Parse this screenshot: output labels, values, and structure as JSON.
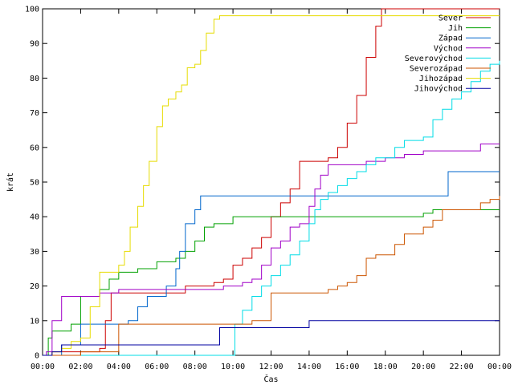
{
  "chart_data": {
    "type": "line",
    "xlabel": "Čas",
    "ylabel": "krát",
    "xlim": [
      0,
      24
    ],
    "ylim": [
      0,
      100
    ],
    "x_tick_labels": [
      "00:00",
      "02:00",
      "04:00",
      "06:00",
      "08:00",
      "10:00",
      "12:00",
      "14:00",
      "16:00",
      "18:00",
      "20:00",
      "22:00",
      "00:00"
    ],
    "y_ticks": [
      0,
      10,
      20,
      30,
      40,
      50,
      60,
      70,
      80,
      90,
      100
    ],
    "grid": false,
    "legend_position": "top-right",
    "series": [
      {
        "name": "Sever",
        "color": "#cc0000",
        "x": [
          0,
          0.5,
          1,
          2,
          3,
          3.3,
          3.6,
          4,
          5,
          6,
          7.5,
          8,
          9,
          9.5,
          10,
          10.5,
          11,
          11.5,
          12,
          12.5,
          13,
          13.5,
          14,
          14.5,
          15,
          15.5,
          16,
          16.5,
          17,
          17.5,
          17.8,
          18,
          24
        ],
        "y": [
          0,
          1,
          1,
          1,
          2,
          10,
          18,
          18,
          18,
          18,
          20,
          20,
          21,
          22,
          26,
          28,
          31,
          34,
          40,
          44,
          48,
          56,
          56,
          56,
          57,
          60,
          67,
          75,
          86,
          95,
          100,
          100,
          100
        ]
      },
      {
        "name": "Jih",
        "color": "#00a000",
        "x": [
          0,
          0.3,
          0.5,
          1,
          1.5,
          2,
          3,
          3.5,
          4,
          5,
          6,
          7,
          7.5,
          8,
          8.5,
          9,
          10,
          11,
          12,
          14,
          16,
          18,
          20,
          20.5,
          21,
          22,
          24
        ],
        "y": [
          0,
          5,
          7,
          7,
          9,
          17,
          19,
          22,
          24,
          25,
          27,
          28,
          30,
          33,
          37,
          38,
          40,
          40,
          40,
          40,
          40,
          40,
          41,
          42,
          42,
          42,
          42
        ]
      },
      {
        "name": "Západ",
        "color": "#0066cc",
        "x": [
          0,
          1,
          2,
          3,
          4,
          4.5,
          5,
          5.5,
          6,
          6.5,
          7,
          7.2,
          7.5,
          8,
          8.3,
          8.5,
          10,
          12,
          14,
          16,
          18,
          20,
          21,
          21.3,
          22,
          23,
          24
        ],
        "y": [
          0,
          3,
          9,
          9,
          9,
          10,
          14,
          17,
          17,
          20,
          25,
          30,
          38,
          42,
          46,
          46,
          46,
          46,
          46,
          46,
          46,
          46,
          46,
          53,
          53,
          53,
          53
        ]
      },
      {
        "name": "Východ",
        "color": "#a000c8",
        "x": [
          0,
          0.2,
          0.5,
          1,
          1.5,
          2,
          3,
          4,
          5,
          6,
          7,
          8,
          9,
          9.5,
          10,
          10.5,
          11,
          11.5,
          12,
          12.5,
          13,
          13.5,
          14,
          14.3,
          14.6,
          15,
          16,
          17,
          18,
          19,
          20,
          21,
          22,
          23,
          24
        ],
        "y": [
          0,
          1,
          10,
          17,
          17,
          17,
          18,
          19,
          19,
          19,
          19,
          19,
          19,
          20,
          20,
          21,
          22,
          26,
          31,
          33,
          37,
          38,
          43,
          48,
          52,
          55,
          55,
          56,
          57,
          58,
          59,
          59,
          59,
          61,
          61
        ]
      },
      {
        "name": "Severovýchod",
        "color": "#00dce6",
        "x": [
          0,
          9.9,
          10.1,
          10.5,
          11,
          11.5,
          12,
          12.5,
          13,
          13.5,
          14,
          14.3,
          14.6,
          15,
          15.5,
          16,
          16.5,
          17,
          17.5,
          18,
          18.5,
          19,
          19.5,
          20,
          20.5,
          21,
          21.5,
          22,
          22.5,
          23,
          23.5,
          24
        ],
        "y": [
          0,
          0,
          9,
          13,
          17,
          20,
          23,
          26,
          29,
          33,
          38,
          42,
          45,
          47,
          49,
          51,
          53,
          55,
          57,
          57,
          60,
          62,
          62,
          63,
          68,
          71,
          74,
          76,
          79,
          82,
          84,
          85
        ]
      },
      {
        "name": "Severozápad",
        "color": "#cc5500",
        "x": [
          0,
          2,
          4,
          6,
          8,
          10,
          11,
          12,
          13,
          14,
          15,
          15.5,
          16,
          16.5,
          17,
          17.5,
          18,
          18.5,
          19,
          19.5,
          20,
          20.5,
          21,
          22,
          23,
          23.5,
          24
        ],
        "y": [
          0,
          1,
          9,
          9,
          9,
          9,
          10,
          18,
          18,
          18,
          19,
          20,
          21,
          23,
          28,
          29,
          29,
          32,
          35,
          35,
          37,
          39,
          42,
          42,
          44,
          45,
          46
        ]
      },
      {
        "name": "Jihozápad",
        "color": "#e6dc00",
        "x": [
          0,
          0.5,
          1,
          1.5,
          2,
          2.5,
          3,
          3.5,
          4,
          4.3,
          4.6,
          5,
          5.3,
          5.6,
          6,
          6.3,
          6.6,
          7,
          7.3,
          7.6,
          8,
          8.3,
          8.6,
          9,
          9.3,
          9.6,
          10,
          12,
          14,
          16,
          18,
          20,
          22,
          24
        ],
        "y": [
          0,
          1,
          2,
          4,
          5,
          14,
          24,
          24,
          26,
          30,
          37,
          43,
          49,
          56,
          66,
          72,
          74,
          76,
          78,
          83,
          84,
          88,
          93,
          97,
          98,
          98,
          98,
          98,
          98,
          98,
          98,
          98,
          98,
          98
        ]
      },
      {
        "name": "Jihovýchod",
        "color": "#0000a0",
        "x": [
          0,
          0.5,
          1,
          2,
          3,
          4,
          5,
          6,
          7,
          8,
          9,
          9.3,
          10,
          11,
          12,
          13,
          13.5,
          14,
          16,
          18,
          20,
          22,
          24
        ],
        "y": [
          0,
          1,
          3,
          3,
          3,
          3,
          3,
          3,
          3,
          3,
          3,
          8,
          8,
          8,
          8,
          8,
          8,
          10,
          10,
          10,
          10,
          10,
          10
        ]
      }
    ]
  }
}
